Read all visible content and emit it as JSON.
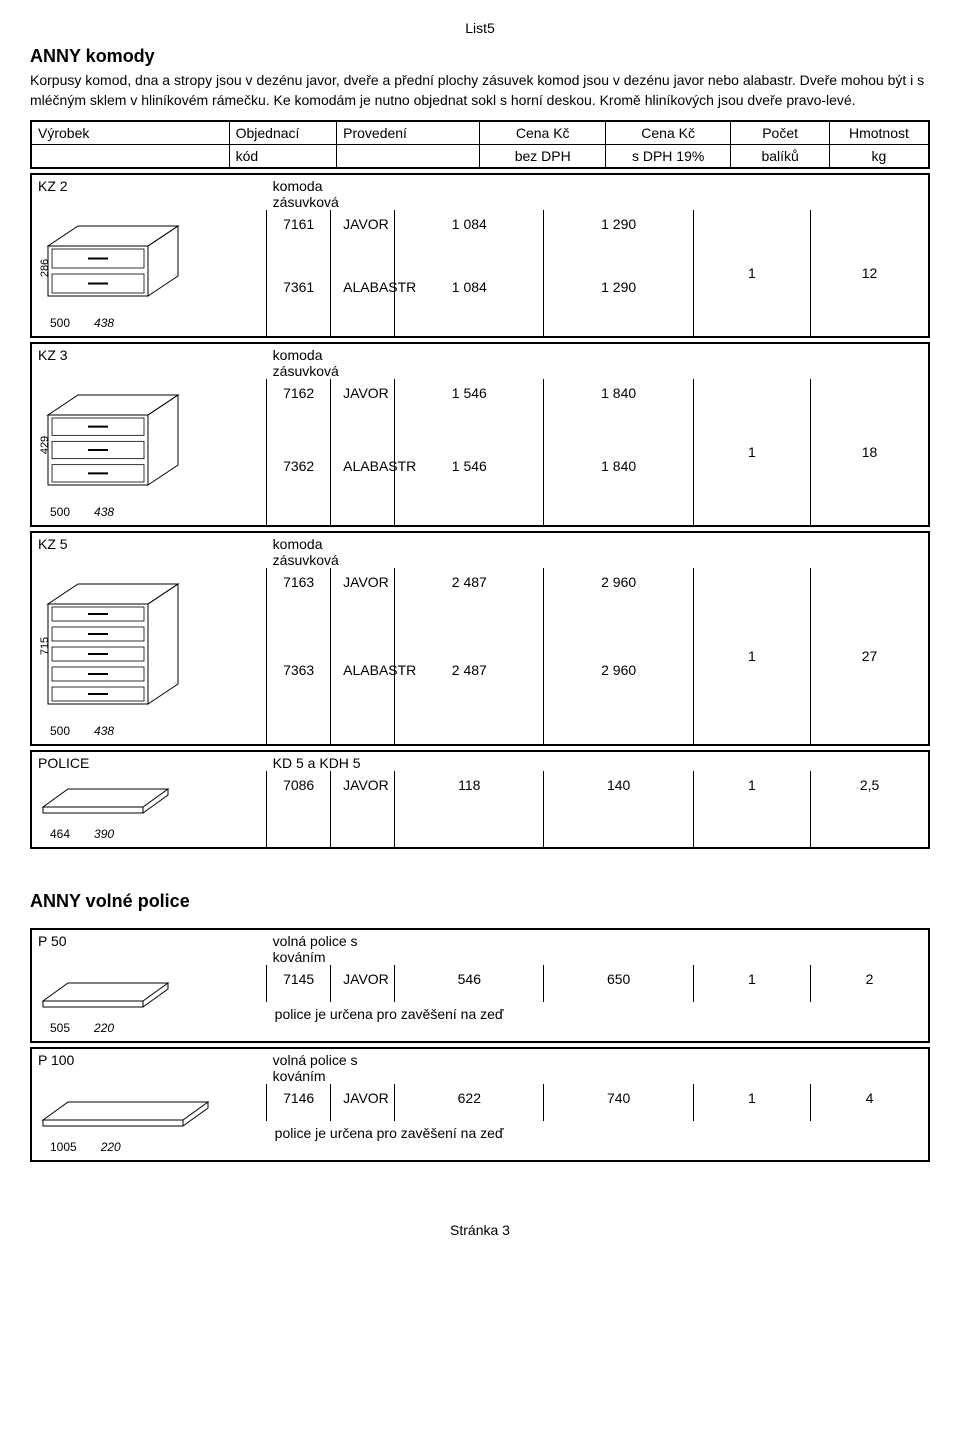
{
  "page_label": "List5",
  "footer": "Stránka 3",
  "section1": {
    "title": "ANNY  komody",
    "intro": "Korpusy komod, dna a stropy jsou v dezénu javor, dveře a přední plochy zásuvek komod jsou v dezénu javor nebo alabastr. Dveře mohou být i s mléčným sklem v hliníkovém rámečku. Ke komodám je nutno objednat sokl s horní deskou. Kromě hliníkových jsou dveře pravo-levé."
  },
  "header": {
    "c1a": "Výrobek",
    "c1b": "",
    "c2a": "Objednací",
    "c2b": "kód",
    "c3a": "Provedení",
    "c3b": "",
    "c4a": "Cena Kč",
    "c4b": "bez DPH",
    "c5a": "Cena Kč",
    "c5b": "s DPH 19%",
    "c6a": "Počet",
    "c6b": "balíků",
    "c7a": "Hmotnost",
    "c7b": "kg"
  },
  "products": [
    {
      "model": "KZ 2",
      "desc": "komoda zásuvková",
      "dims": {
        "w": "500",
        "d": "438",
        "h": "286"
      },
      "svg_type": "komoda2",
      "rows": [
        {
          "code": "7161",
          "prov": "JAVOR",
          "p1": "1 084",
          "p2": "1 290"
        },
        {
          "code": "7361",
          "prov": "ALABASTR",
          "p1": "1 084",
          "p2": "1 290"
        }
      ],
      "cnt": "1",
      "wt": "12"
    },
    {
      "model": "KZ 3",
      "desc": "komoda zásuvková",
      "dims": {
        "w": "500",
        "d": "438",
        "h": "429"
      },
      "svg_type": "komoda3",
      "rows": [
        {
          "code": "7162",
          "prov": "JAVOR",
          "p1": "1 546",
          "p2": "1 840"
        },
        {
          "code": "7362",
          "prov": "ALABASTR",
          "p1": "1 546",
          "p2": "1 840"
        }
      ],
      "cnt": "1",
      "wt": "18"
    },
    {
      "model": "KZ 5",
      "desc": "komoda zásuvková",
      "dims": {
        "w": "500",
        "d": "438",
        "h": "715"
      },
      "svg_type": "komoda5",
      "rows": [
        {
          "code": "7163",
          "prov": "JAVOR",
          "p1": "2 487",
          "p2": "2 960"
        },
        {
          "code": "7363",
          "prov": "ALABASTR",
          "p1": "2 487",
          "p2": "2 960"
        }
      ],
      "cnt": "1",
      "wt": "27"
    },
    {
      "model": "POLICE",
      "desc": "KD 5 a KDH 5",
      "dims": {
        "w": "464",
        "d": "390",
        "h": ""
      },
      "svg_type": "shelf",
      "rows": [
        {
          "code": "7086",
          "prov": "JAVOR",
          "p1": "118",
          "p2": "140",
          "cnt": "1",
          "wt": "2,5"
        }
      ]
    }
  ],
  "section2": {
    "title": "ANNY  volné police"
  },
  "products2": [
    {
      "model": "P 50",
      "desc": "volná police s kováním",
      "dims": {
        "w": "505",
        "d": "220",
        "h": ""
      },
      "svg_type": "shelf",
      "note": "police je určena pro zavěšení na zeď",
      "rows": [
        {
          "code": "7145",
          "prov": "JAVOR",
          "p1": "546",
          "p2": "650",
          "cnt": "1",
          "wt": "2"
        }
      ]
    },
    {
      "model": "P 100",
      "desc": "volná police s kováním",
      "dims": {
        "w": "1005",
        "d": "220",
        "h": ""
      },
      "svg_type": "shelf_long",
      "note": "police je určena pro zavěšení na zeď",
      "rows": [
        {
          "code": "7146",
          "prov": "JAVOR",
          "p1": "622",
          "p2": "740",
          "cnt": "1",
          "wt": "4"
        }
      ]
    }
  ]
}
